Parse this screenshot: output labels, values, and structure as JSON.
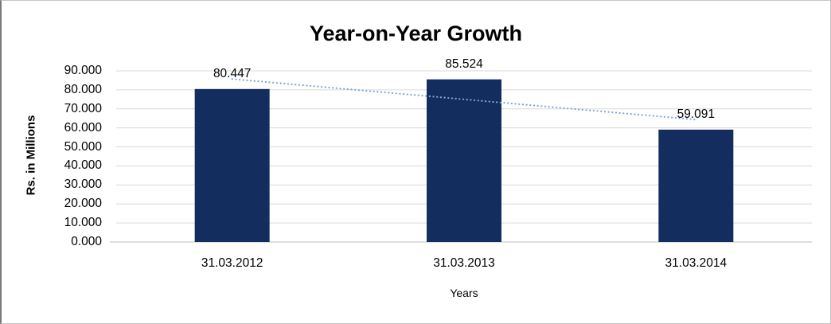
{
  "chart_data": {
    "type": "bar",
    "title": "Year-on-Year Growth",
    "xlabel": "Years",
    "ylabel": "Rs. in Millions",
    "categories": [
      "31.03.2012",
      "31.03.2013",
      "31.03.2014"
    ],
    "values": [
      80.447,
      85.524,
      59.091
    ],
    "data_labels": [
      "80.447",
      "85.524",
      "59.091"
    ],
    "ylim": [
      0,
      90
    ],
    "ytick_step": 10,
    "ytick_decimals": 3,
    "grid": "horizontal",
    "legend": "none",
    "trendline": {
      "type": "linear",
      "style": "dotted",
      "color": "#7EA6D8"
    },
    "colors": {
      "bar": "#132D5E",
      "gridline": "#D9D9D9",
      "axis_line": "#BFBFBF",
      "text": "#000000",
      "background": "#FFFFFF"
    }
  }
}
